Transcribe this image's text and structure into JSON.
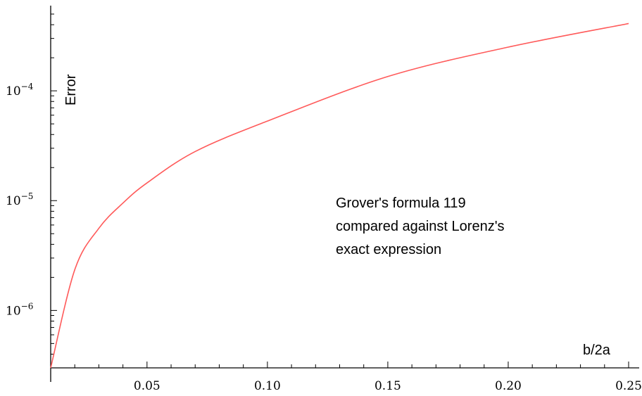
{
  "chart_data": {
    "type": "line",
    "title": "",
    "xlabel": "b/2a",
    "ylabel": "Error",
    "yscale": "log",
    "xlim": [
      0.01,
      0.25
    ],
    "ylim": [
      3e-07,
      0.0005
    ],
    "xticks": [
      {
        "value": 0.05,
        "label": "0.05"
      },
      {
        "value": 0.1,
        "label": "0.10"
      },
      {
        "value": 0.15,
        "label": "0.15"
      },
      {
        "value": 0.2,
        "label": "0.20"
      },
      {
        "value": 0.25,
        "label": "0.25"
      }
    ],
    "yticks": [
      {
        "value": 0.0001,
        "base": "10",
        "exp": "−4"
      },
      {
        "value": 1e-05,
        "base": "10",
        "exp": "−5"
      },
      {
        "value": 1e-06,
        "base": "10",
        "exp": "−6"
      }
    ],
    "series": [
      {
        "color": "#ff5a5a",
        "x": [
          0.01,
          0.02,
          0.03,
          0.04,
          0.05,
          0.07,
          0.1,
          0.15,
          0.2,
          0.25
        ],
        "y": [
          3e-07,
          2.35e-06,
          5.6e-06,
          9.5e-06,
          1.45e-05,
          2.8e-05,
          5.3e-05,
          0.000135,
          0.00025,
          0.00041
        ]
      }
    ],
    "annotation": {
      "lines": [
        "Grover's formula 119",
        "compared against Lorenz's",
        "exact expression"
      ]
    },
    "grid": false,
    "legend": "none"
  }
}
